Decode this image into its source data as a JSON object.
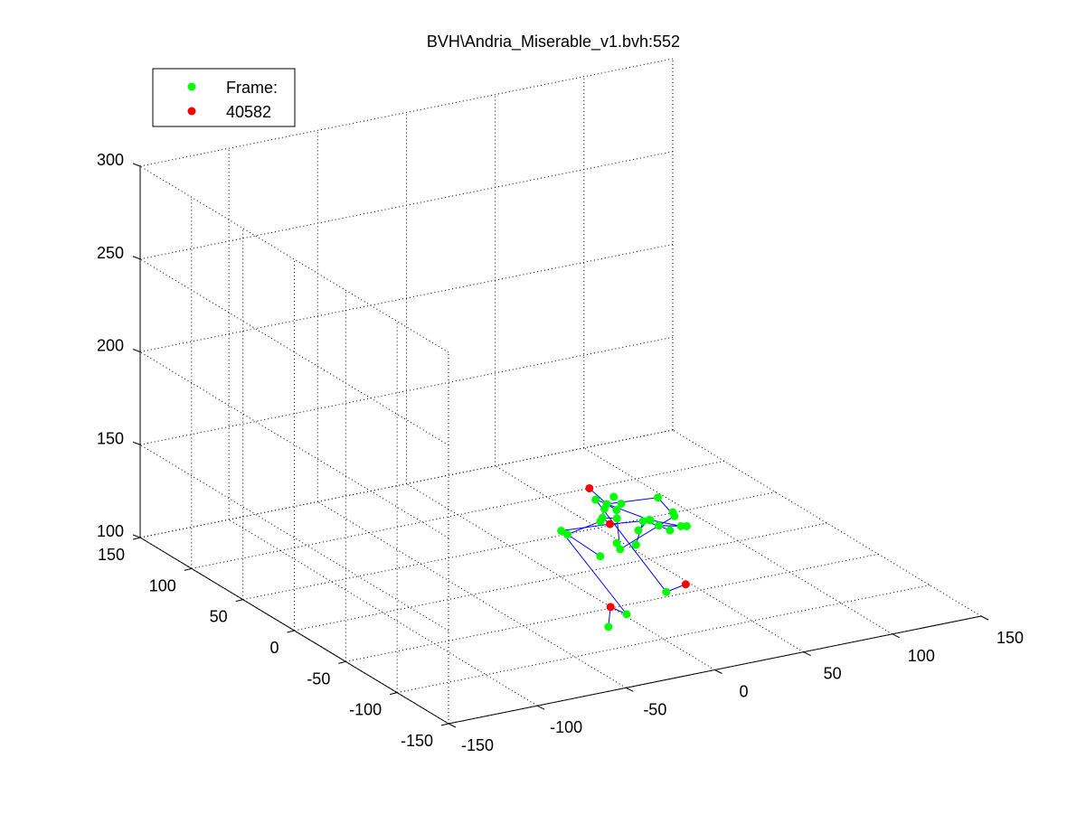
{
  "window": {
    "background": "#ffffff"
  },
  "chart_data": {
    "type": "scatter",
    "projection": "3d",
    "title": "BVH\\Andria_Miserable_v1.bvh:552",
    "grid": true,
    "legend_position": "top-left",
    "legend": [
      {
        "label": "Frame:",
        "color": "#00ff00"
      },
      {
        "label": "40582",
        "color": "#ff0000"
      }
    ],
    "axes": {
      "x": {
        "range": [
          -150,
          150
        ],
        "ticks": [
          -150,
          -100,
          -50,
          0,
          50,
          100,
          150
        ]
      },
      "y": {
        "range": [
          -150,
          150
        ],
        "ticks": [
          -150,
          -100,
          -50,
          0,
          50,
          100,
          150
        ]
      },
      "z": {
        "range": [
          100,
          300
        ],
        "ticks": [
          100,
          150,
          200,
          250,
          300
        ]
      }
    },
    "colors": {
      "joint": "#00ff00",
      "end_effector": "#ff0000",
      "bone": "#0000ff"
    },
    "series": [
      {
        "name": "Frame:",
        "color": "#00ff00",
        "points": [
          {
            "x": -17,
            "y": -72,
            "z": 164
          },
          {
            "x": -14,
            "y": -69,
            "z": 165
          },
          {
            "x": -6,
            "y": -62,
            "z": 165
          },
          {
            "x": -5,
            "y": -63,
            "z": 158
          },
          {
            "x": 1,
            "y": -53,
            "z": 149
          },
          {
            "x": 16,
            "y": -67,
            "z": 162
          },
          {
            "x": 23,
            "y": -71,
            "z": 152
          },
          {
            "x": 25,
            "y": -66,
            "z": 152
          },
          {
            "x": 24,
            "y": -54,
            "z": 141
          },
          {
            "x": 33,
            "y": -60,
            "z": 141
          },
          {
            "x": 28,
            "y": -58,
            "z": 139
          },
          {
            "x": 38,
            "y": -57,
            "z": 139
          },
          {
            "x": 28,
            "y": -38,
            "z": 138
          },
          {
            "x": 16,
            "y": -48,
            "z": 138
          },
          {
            "x": 14,
            "y": -56,
            "z": 146
          },
          {
            "x": 10,
            "y": -56,
            "z": 134
          },
          {
            "x": 8,
            "y": -44,
            "z": 128
          },
          {
            "x": 20,
            "y": -20,
            "z": 121
          },
          {
            "x": 4,
            "y": -52,
            "z": 156
          },
          {
            "x": -13,
            "y": -61,
            "z": 134
          },
          {
            "x": -21,
            "y": -75,
            "z": 159
          },
          {
            "x": -35,
            "y": -67,
            "z": 152
          },
          {
            "x": -6,
            "y": -51,
            "z": 150
          },
          {
            "x": -13,
            "y": -23,
            "z": 135
          },
          {
            "x": 32,
            "y": -32,
            "z": 135
          },
          {
            "x": 34,
            "y": -44,
            "z": 100
          },
          {
            "x": 22,
            "y": 4,
            "z": 136
          },
          {
            "x": 3,
            "y": -59,
            "z": 99
          },
          {
            "x": -20,
            "y": -81,
            "z": 104
          }
        ]
      },
      {
        "name": "40582",
        "color": "#ff0000",
        "points": [
          {
            "x": -22,
            "y": -66,
            "z": 174
          },
          {
            "x": 11,
            "y": -29,
            "z": 136
          },
          {
            "x": 45,
            "y": -44,
            "z": 102
          },
          {
            "x": -13,
            "y": -71,
            "z": 110
          }
        ]
      }
    ],
    "bones": [
      [
        "root",
        "leftHip"
      ],
      [
        "leftHip",
        "leftKnee"
      ],
      [
        "leftKnee",
        "leftAnkle"
      ],
      [
        "leftAnkle",
        "leftToe"
      ],
      [
        "root",
        "rightHip"
      ],
      [
        "rightHip",
        "rightKnee"
      ],
      [
        "rightKnee",
        "rightAnkle"
      ],
      [
        "rightAnkle",
        "rightToe"
      ],
      [
        "root",
        "spine1"
      ],
      [
        "spine1",
        "spine2"
      ],
      [
        "spine2",
        "spine3"
      ],
      [
        "spine3",
        "neck"
      ],
      [
        "neck",
        "head"
      ],
      [
        "neck",
        "lClav"
      ],
      [
        "lClav",
        "lElbow"
      ],
      [
        "lElbow",
        "lWrist"
      ],
      [
        "neck",
        "rClav"
      ],
      [
        "rClav",
        "rShoulder"
      ],
      [
        "rShoulder",
        "rElbow"
      ],
      [
        "rElbow",
        "rWrist"
      ],
      [
        "lWrist",
        "lHand1"
      ],
      [
        "lWrist",
        "lHand2"
      ],
      [
        "lWrist",
        "lHand3"
      ],
      [
        "lHand1",
        "lHand4"
      ],
      [
        "lHand4",
        "lHand5"
      ],
      [
        "lWrist",
        "lHand6"
      ],
      [
        "lHand6",
        "lHand7"
      ],
      [
        "lWrist",
        "lHand8"
      ],
      [
        "spine2",
        "lHand8"
      ]
    ],
    "joints": {
      "head": {
        "x": -22,
        "y": -66,
        "z": 174
      },
      "neck": {
        "x": -14,
        "y": -69,
        "z": 165
      },
      "spine3": {
        "x": -5,
        "y": -63,
        "z": 158
      },
      "spine2": {
        "x": 1,
        "y": -53,
        "z": 149
      },
      "spine1": {
        "x": -6,
        "y": -51,
        "z": 150
      },
      "root": {
        "x": 11,
        "y": -29,
        "z": 136
      },
      "lClav": {
        "x": 16,
        "y": -67,
        "z": 162
      },
      "lElbow": {
        "x": 23,
        "y": -71,
        "z": 152
      },
      "lWrist": {
        "x": 24,
        "y": -54,
        "z": 141
      },
      "lHand1": {
        "x": 33,
        "y": -60,
        "z": 141
      },
      "lHand2": {
        "x": 28,
        "y": -58,
        "z": 139
      },
      "lHand3": {
        "x": 38,
        "y": -57,
        "z": 139
      },
      "lHand4": {
        "x": 28,
        "y": -38,
        "z": 138
      },
      "lHand5": {
        "x": 16,
        "y": -48,
        "z": 138
      },
      "lHand6": {
        "x": 14,
        "y": -56,
        "z": 146
      },
      "lHand7": {
        "x": 10,
        "y": -56,
        "z": 134
      },
      "lHand8": {
        "x": 8,
        "y": -44,
        "z": 128
      },
      "rClav": {
        "x": -17,
        "y": -72,
        "z": 164
      },
      "rShoulder": {
        "x": -21,
        "y": -75,
        "z": 159
      },
      "rElbow": {
        "x": -35,
        "y": -67,
        "z": 152
      },
      "rWrist": {
        "x": -13,
        "y": -61,
        "z": 134
      },
      "leftHip": {
        "x": 32,
        "y": -32,
        "z": 135
      },
      "leftKnee": {
        "x": 22,
        "y": 4,
        "z": 136
      },
      "leftAnkle": {
        "x": 34,
        "y": -44,
        "z": 100
      },
      "leftToe": {
        "x": 45,
        "y": -44,
        "z": 102
      },
      "rightHip": {
        "x": -13,
        "y": -23,
        "z": 135
      },
      "rightKnee": {
        "x": 3,
        "y": -59,
        "z": 99
      },
      "rightAnkle": {
        "x": -13,
        "y": -71,
        "z": 110
      },
      "rightToe": {
        "x": -20,
        "y": -81,
        "z": 104
      }
    }
  }
}
